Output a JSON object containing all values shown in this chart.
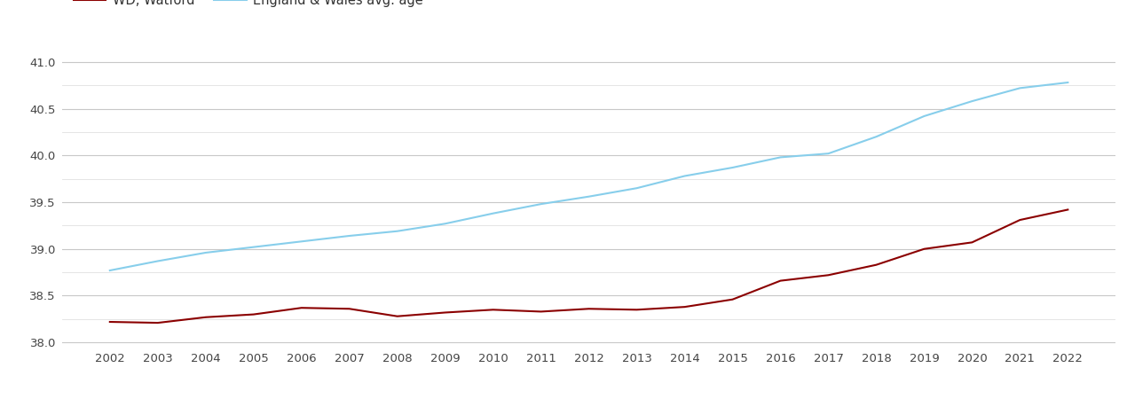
{
  "years": [
    2002,
    2003,
    2004,
    2005,
    2006,
    2007,
    2008,
    2009,
    2010,
    2011,
    2012,
    2013,
    2014,
    2015,
    2016,
    2017,
    2018,
    2019,
    2020,
    2021,
    2022
  ],
  "watford": [
    38.22,
    38.21,
    38.27,
    38.3,
    38.37,
    38.36,
    38.28,
    38.32,
    38.35,
    38.33,
    38.36,
    38.35,
    38.38,
    38.46,
    38.66,
    38.72,
    38.83,
    39.0,
    39.07,
    39.31,
    39.42
  ],
  "england_wales": [
    38.77,
    38.87,
    38.96,
    39.02,
    39.08,
    39.14,
    39.19,
    39.27,
    39.38,
    39.48,
    39.56,
    39.65,
    39.78,
    39.87,
    39.98,
    40.02,
    40.2,
    40.42,
    40.58,
    40.72,
    40.78
  ],
  "watford_color": "#8B0000",
  "england_wales_color": "#87CEEB",
  "ylim": [
    37.95,
    41.15
  ],
  "yticks_major": [
    38.0,
    38.5,
    39.0,
    39.5,
    40.0,
    40.5,
    41.0
  ],
  "yticks_minor": [
    38.25,
    38.75,
    39.25,
    39.75,
    40.25,
    40.75
  ],
  "background_color": "#ffffff",
  "grid_color_major": "#c8c8c8",
  "grid_color_minor": "#e0e0e0",
  "line_width": 1.5,
  "tick_fontsize": 9.5,
  "legend_fontsize": 10.5
}
